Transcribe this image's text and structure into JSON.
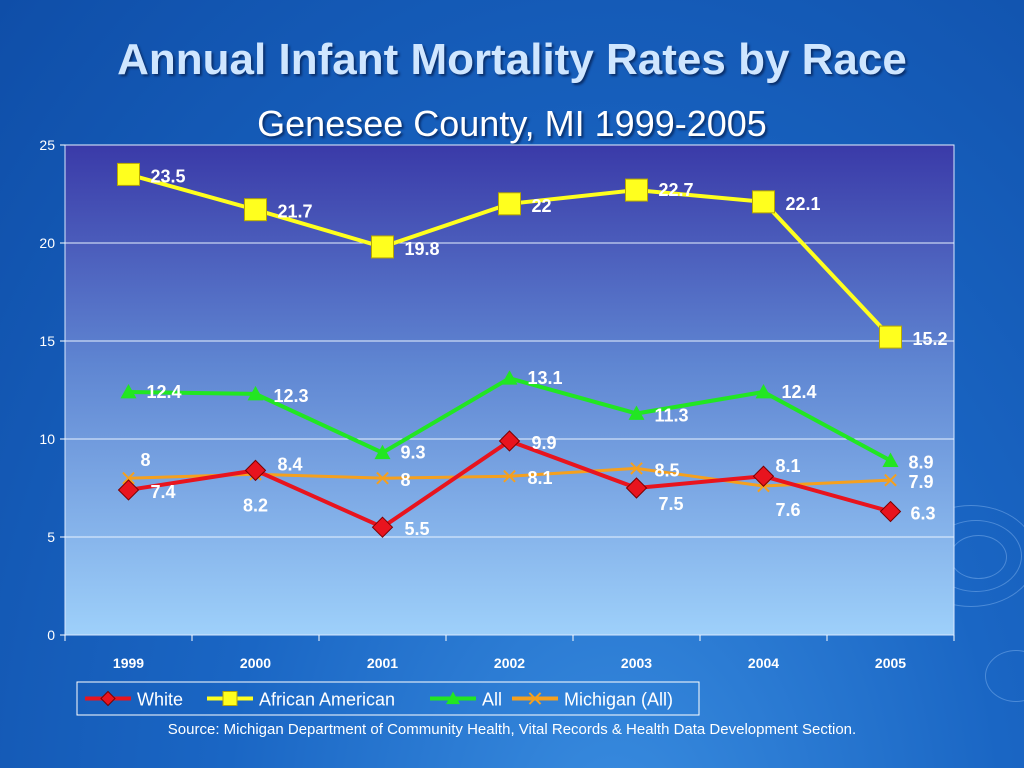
{
  "slide": {
    "title": "Annual Infant Mortality Rates by Race",
    "subtitle": "Genesee County, MI  1999-2005",
    "source": "Source: Michigan Department of Community Health, Vital Records & Health Data Development Section."
  },
  "chart_data": {
    "type": "line",
    "x": [
      "1999",
      "2000",
      "2001",
      "2002",
      "2003",
      "2004",
      "2005"
    ],
    "ylim": [
      0,
      25
    ],
    "yticks": [
      0,
      5,
      10,
      15,
      20,
      25
    ],
    "grid": true,
    "legend_position": "bottom",
    "series": [
      {
        "name": "White",
        "values": [
          7.4,
          8.4,
          5.5,
          9.9,
          7.5,
          8.1,
          6.3
        ],
        "labels": [
          "7.4",
          "8.4",
          "5.5",
          "9.9",
          "7.5",
          "8.1",
          "6.3"
        ],
        "color": "#e8141e",
        "marker": "diamond"
      },
      {
        "name": "African American",
        "values": [
          23.5,
          21.7,
          19.8,
          22,
          22.7,
          22.1,
          15.2
        ],
        "labels": [
          "23.5",
          "21.7",
          "19.8",
          "22",
          "22.7",
          "22.1",
          "15.2"
        ],
        "color": "#ffff1e",
        "marker": "square"
      },
      {
        "name": "All",
        "values": [
          12.4,
          12.3,
          9.3,
          13.1,
          11.3,
          12.4,
          8.9
        ],
        "labels": [
          "12.4",
          "12.3",
          "9.3",
          "13.1",
          "11.3",
          "12.4",
          "8.9"
        ],
        "color": "#22e622",
        "marker": "triangle"
      },
      {
        "name": "Michigan (All)",
        "values": [
          8,
          8.2,
          8,
          8.1,
          8.5,
          7.6,
          7.9
        ],
        "labels": [
          "8",
          "8.2",
          "8",
          "8.1",
          "8.5",
          "7.6",
          "7.9"
        ],
        "color": "#f5a01e",
        "marker": "x"
      }
    ]
  }
}
